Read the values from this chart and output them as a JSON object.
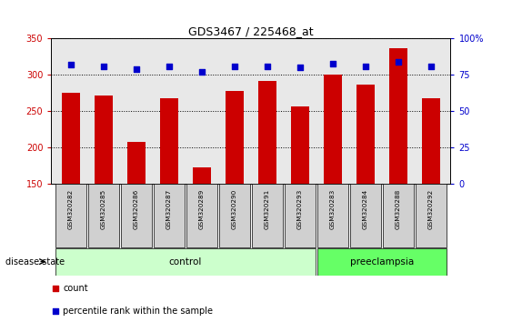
{
  "title": "GDS3467 / 225468_at",
  "samples": [
    "GSM320282",
    "GSM320285",
    "GSM320286",
    "GSM320287",
    "GSM320289",
    "GSM320290",
    "GSM320291",
    "GSM320293",
    "GSM320283",
    "GSM320284",
    "GSM320288",
    "GSM320292"
  ],
  "counts": [
    275,
    272,
    208,
    268,
    172,
    278,
    292,
    257,
    301,
    287,
    337,
    268
  ],
  "percentiles": [
    82,
    81,
    79,
    81,
    77,
    81,
    81,
    80,
    83,
    81,
    84,
    81
  ],
  "groups": [
    "control",
    "control",
    "control",
    "control",
    "control",
    "control",
    "control",
    "control",
    "preeclampsia",
    "preeclampsia",
    "preeclampsia",
    "preeclampsia"
  ],
  "control_color": "#ccffcc",
  "preeclampsia_color": "#66ff66",
  "bar_color": "#cc0000",
  "dot_color": "#0000cc",
  "ylim_left": [
    150,
    350
  ],
  "ylim_right": [
    0,
    100
  ],
  "yticks_left": [
    150,
    200,
    250,
    300,
    350
  ],
  "yticks_right": [
    0,
    25,
    50,
    75,
    100
  ],
  "plot_bg_color": "#e8e8e8",
  "legend_count_label": "count",
  "legend_pct_label": "percentile rank within the sample",
  "disease_state_label": "disease state",
  "control_label": "control",
  "preeclampsia_label": "preeclampsia",
  "label_bg_color": "#d0d0d0"
}
